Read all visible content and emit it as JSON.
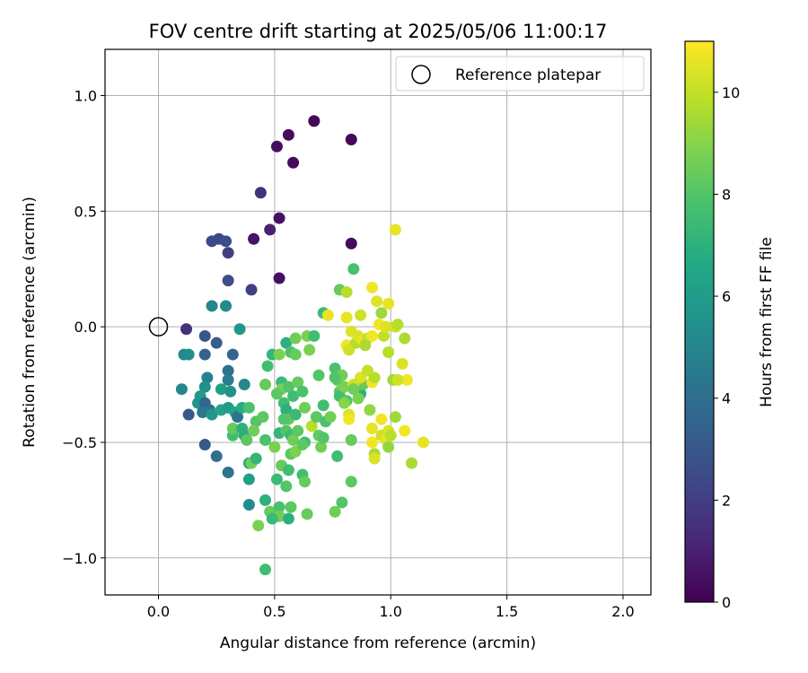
{
  "chart_data": {
    "type": "scatter",
    "title": "FOV centre drift starting at 2025/05/06 11:00:17",
    "xlabel": "Angular distance from reference (arcmin)",
    "ylabel": "Rotation from reference (arcmin)",
    "xlim": [
      -0.23,
      2.12
    ],
    "ylim": [
      -1.16,
      1.2
    ],
    "xticks": [
      0.0,
      0.5,
      1.0,
      1.5,
      2.0
    ],
    "xtick_labels": [
      "0.0",
      "0.5",
      "1.0",
      "1.5",
      "2.0"
    ],
    "yticks": [
      -1.0,
      -0.5,
      0.0,
      0.5,
      1.0
    ],
    "ytick_labels": [
      "−1.0",
      "−0.5",
      "0.0",
      "0.5",
      "1.0"
    ],
    "grid": true,
    "legend": {
      "placement": "upper-right",
      "entries": [
        "Reference platepar"
      ]
    },
    "reference_point": {
      "name": "Reference platepar",
      "x": 0.0,
      "y": 0.0,
      "marker": "open-circle"
    },
    "colorbar": {
      "label": "Hours from first FF file",
      "colormap": "viridis",
      "range": [
        0,
        11
      ],
      "ticks": [
        0,
        2,
        4,
        6,
        8,
        10
      ],
      "tick_labels": [
        "0",
        "2",
        "4",
        "6",
        "8",
        "10"
      ]
    },
    "points": [
      {
        "x": 0.67,
        "y": 0.89,
        "h": 0.2
      },
      {
        "x": 0.56,
        "y": 0.83,
        "h": 0.3
      },
      {
        "x": 0.83,
        "y": 0.81,
        "h": 0.2
      },
      {
        "x": 0.51,
        "y": 0.78,
        "h": 0.4
      },
      {
        "x": 0.58,
        "y": 0.71,
        "h": 0.3
      },
      {
        "x": 0.44,
        "y": 0.58,
        "h": 1.5
      },
      {
        "x": 0.52,
        "y": 0.47,
        "h": 0.5
      },
      {
        "x": 0.48,
        "y": 0.42,
        "h": 1.0
      },
      {
        "x": 0.41,
        "y": 0.38,
        "h": 0.6
      },
      {
        "x": 0.83,
        "y": 0.36,
        "h": 0.3
      },
      {
        "x": 0.52,
        "y": 0.21,
        "h": 0.4
      },
      {
        "x": 0.4,
        "y": 0.16,
        "h": 2.0
      },
      {
        "x": 0.23,
        "y": 0.37,
        "h": 2.3
      },
      {
        "x": 0.26,
        "y": 0.38,
        "h": 2.4
      },
      {
        "x": 0.29,
        "y": 0.37,
        "h": 2.6
      },
      {
        "x": 0.3,
        "y": 0.32,
        "h": 2.0
      },
      {
        "x": 0.3,
        "y": 0.2,
        "h": 2.6
      },
      {
        "x": 0.23,
        "y": 0.09,
        "h": 5.0
      },
      {
        "x": 0.29,
        "y": 0.09,
        "h": 5.2
      },
      {
        "x": 0.35,
        "y": -0.01,
        "h": 5.8
      },
      {
        "x": 0.12,
        "y": -0.01,
        "h": 1.5
      },
      {
        "x": 0.2,
        "y": -0.04,
        "h": 3.0
      },
      {
        "x": 0.25,
        "y": -0.07,
        "h": 3.2
      },
      {
        "x": 0.11,
        "y": -0.12,
        "h": 5.0
      },
      {
        "x": 0.13,
        "y": -0.12,
        "h": 5.4
      },
      {
        "x": 0.2,
        "y": -0.12,
        "h": 3.4
      },
      {
        "x": 0.32,
        "y": -0.12,
        "h": 3.6
      },
      {
        "x": 0.3,
        "y": -0.19,
        "h": 4.2
      },
      {
        "x": 0.21,
        "y": -0.22,
        "h": 4.8
      },
      {
        "x": 0.3,
        "y": -0.23,
        "h": 4.6
      },
      {
        "x": 0.37,
        "y": -0.25,
        "h": 5.0
      },
      {
        "x": 0.2,
        "y": -0.26,
        "h": 5.4
      },
      {
        "x": 0.1,
        "y": -0.27,
        "h": 5.0
      },
      {
        "x": 0.27,
        "y": -0.27,
        "h": 6.2
      },
      {
        "x": 0.31,
        "y": -0.28,
        "h": 5.6
      },
      {
        "x": 0.18,
        "y": -0.3,
        "h": 6.0
      },
      {
        "x": 0.17,
        "y": -0.33,
        "h": 5.6
      },
      {
        "x": 0.2,
        "y": -0.33,
        "h": 3.6
      },
      {
        "x": 0.22,
        "y": -0.36,
        "h": 4.0
      },
      {
        "x": 0.19,
        "y": -0.37,
        "h": 4.4
      },
      {
        "x": 0.13,
        "y": -0.38,
        "h": 3.0
      },
      {
        "x": 0.23,
        "y": -0.38,
        "h": 5.8
      },
      {
        "x": 0.27,
        "y": -0.36,
        "h": 6.4
      },
      {
        "x": 0.3,
        "y": -0.35,
        "h": 6.0
      },
      {
        "x": 0.33,
        "y": -0.37,
        "h": 6.4
      },
      {
        "x": 0.34,
        "y": -0.39,
        "h": 4.2
      },
      {
        "x": 0.36,
        "y": -0.35,
        "h": 6.8
      },
      {
        "x": 0.39,
        "y": -0.35,
        "h": 7.8
      },
      {
        "x": 0.2,
        "y": -0.51,
        "h": 3.0
      },
      {
        "x": 0.25,
        "y": -0.56,
        "h": 4.0
      },
      {
        "x": 0.3,
        "y": -0.63,
        "h": 4.2
      },
      {
        "x": 0.39,
        "y": -0.66,
        "h": 6.2
      },
      {
        "x": 0.39,
        "y": -0.77,
        "h": 5.2
      },
      {
        "x": 0.32,
        "y": -0.47,
        "h": 7.6
      },
      {
        "x": 0.37,
        "y": -0.47,
        "h": 6.8
      },
      {
        "x": 0.39,
        "y": -0.59,
        "h": 6.6
      },
      {
        "x": 0.4,
        "y": -0.59,
        "h": 8.6
      },
      {
        "x": 0.42,
        "y": -0.57,
        "h": 7.2
      },
      {
        "x": 0.32,
        "y": -0.44,
        "h": 8.4
      },
      {
        "x": 0.36,
        "y": -0.44,
        "h": 7.0
      },
      {
        "x": 0.42,
        "y": -0.41,
        "h": 8.0
      },
      {
        "x": 0.45,
        "y": -0.39,
        "h": 8.2
      },
      {
        "x": 0.41,
        "y": -0.45,
        "h": 8.6
      },
      {
        "x": 0.38,
        "y": -0.49,
        "h": 8.2
      },
      {
        "x": 0.46,
        "y": -0.25,
        "h": 8.4
      },
      {
        "x": 0.47,
        "y": -0.17,
        "h": 7.6
      },
      {
        "x": 0.49,
        "y": -0.12,
        "h": 7.2
      },
      {
        "x": 0.52,
        "y": -0.12,
        "h": 8.8
      },
      {
        "x": 0.55,
        "y": -0.07,
        "h": 7.0
      },
      {
        "x": 0.57,
        "y": -0.11,
        "h": 7.8
      },
      {
        "x": 0.59,
        "y": -0.05,
        "h": 8.6
      },
      {
        "x": 0.64,
        "y": -0.04,
        "h": 8.8
      },
      {
        "x": 0.67,
        "y": -0.04,
        "h": 7.6
      },
      {
        "x": 0.59,
        "y": -0.12,
        "h": 8.4
      },
      {
        "x": 0.53,
        "y": -0.24,
        "h": 7.4
      },
      {
        "x": 0.53,
        "y": -0.27,
        "h": 8.8
      },
      {
        "x": 0.56,
        "y": -0.26,
        "h": 8.0
      },
      {
        "x": 0.58,
        "y": -0.3,
        "h": 7.6
      },
      {
        "x": 0.6,
        "y": -0.24,
        "h": 8.4
      },
      {
        "x": 0.62,
        "y": -0.28,
        "h": 7.8
      },
      {
        "x": 0.51,
        "y": -0.29,
        "h": 8.2
      },
      {
        "x": 0.54,
        "y": -0.33,
        "h": 7.6
      },
      {
        "x": 0.55,
        "y": -0.36,
        "h": 7.0
      },
      {
        "x": 0.56,
        "y": -0.4,
        "h": 8.4
      },
      {
        "x": 0.54,
        "y": -0.4,
        "h": 8.0
      },
      {
        "x": 0.59,
        "y": -0.38,
        "h": 7.4
      },
      {
        "x": 0.63,
        "y": -0.35,
        "h": 8.6
      },
      {
        "x": 0.66,
        "y": -0.43,
        "h": 9.8
      },
      {
        "x": 0.68,
        "y": -0.39,
        "h": 8.2
      },
      {
        "x": 0.71,
        "y": -0.34,
        "h": 7.6
      },
      {
        "x": 0.69,
        "y": -0.47,
        "h": 8.4
      },
      {
        "x": 0.72,
        "y": -0.41,
        "h": 7.8
      },
      {
        "x": 0.74,
        "y": -0.39,
        "h": 8.6
      },
      {
        "x": 0.52,
        "y": -0.46,
        "h": 7.2
      },
      {
        "x": 0.55,
        "y": -0.45,
        "h": 8.0
      },
      {
        "x": 0.57,
        "y": -0.47,
        "h": 7.4
      },
      {
        "x": 0.58,
        "y": -0.49,
        "h": 8.6
      },
      {
        "x": 0.6,
        "y": -0.45,
        "h": 8.2
      },
      {
        "x": 0.63,
        "y": -0.5,
        "h": 7.6
      },
      {
        "x": 0.5,
        "y": -0.52,
        "h": 8.8
      },
      {
        "x": 0.46,
        "y": -0.49,
        "h": 7.8
      },
      {
        "x": 0.53,
        "y": -0.6,
        "h": 8.4
      },
      {
        "x": 0.56,
        "y": -0.62,
        "h": 7.6
      },
      {
        "x": 0.57,
        "y": -0.55,
        "h": 8.2
      },
      {
        "x": 0.51,
        "y": -0.66,
        "h": 7.4
      },
      {
        "x": 0.55,
        "y": -0.69,
        "h": 8.0
      },
      {
        "x": 0.62,
        "y": -0.64,
        "h": 7.6
      },
      {
        "x": 0.63,
        "y": -0.67,
        "h": 8.4
      },
      {
        "x": 0.59,
        "y": -0.54,
        "h": 8.8
      },
      {
        "x": 0.62,
        "y": -0.51,
        "h": 8.2
      },
      {
        "x": 0.7,
        "y": -0.52,
        "h": 8.6
      },
      {
        "x": 0.71,
        "y": -0.48,
        "h": 8.0
      },
      {
        "x": 0.46,
        "y": -0.75,
        "h": 7.0
      },
      {
        "x": 0.48,
        "y": -0.8,
        "h": 8.4
      },
      {
        "x": 0.52,
        "y": -0.78,
        "h": 7.8
      },
      {
        "x": 0.52,
        "y": -0.82,
        "h": 8.6
      },
      {
        "x": 0.49,
        "y": -0.83,
        "h": 7.4
      },
      {
        "x": 0.56,
        "y": -0.83,
        "h": 7.0
      },
      {
        "x": 0.57,
        "y": -0.78,
        "h": 8.2
      },
      {
        "x": 0.64,
        "y": -0.81,
        "h": 8.4
      },
      {
        "x": 0.76,
        "y": -0.8,
        "h": 8.6
      },
      {
        "x": 0.79,
        "y": -0.76,
        "h": 8.0
      },
      {
        "x": 0.43,
        "y": -0.86,
        "h": 8.8
      },
      {
        "x": 0.46,
        "y": -1.05,
        "h": 7.6
      },
      {
        "x": 0.65,
        "y": -0.1,
        "h": 8.8
      },
      {
        "x": 0.69,
        "y": -0.21,
        "h": 8.0
      },
      {
        "x": 0.71,
        "y": 0.06,
        "h": 7.4
      },
      {
        "x": 0.73,
        "y": 0.05,
        "h": 10.6
      },
      {
        "x": 0.77,
        "y": -0.23,
        "h": 8.2
      },
      {
        "x": 0.76,
        "y": -0.18,
        "h": 7.8
      },
      {
        "x": 0.79,
        "y": -0.21,
        "h": 8.6
      },
      {
        "x": 0.78,
        "y": -0.28,
        "h": 8.4
      },
      {
        "x": 0.78,
        "y": -0.3,
        "h": 7.6
      },
      {
        "x": 0.8,
        "y": -0.26,
        "h": 8.8
      },
      {
        "x": 0.81,
        "y": -0.32,
        "h": 8.0
      },
      {
        "x": 0.8,
        "y": -0.33,
        "h": 9.0
      },
      {
        "x": 0.82,
        "y": -0.38,
        "h": 10.4
      },
      {
        "x": 0.82,
        "y": -0.4,
        "h": 10.8
      },
      {
        "x": 0.83,
        "y": -0.49,
        "h": 8.4
      },
      {
        "x": 0.77,
        "y": -0.56,
        "h": 7.6
      },
      {
        "x": 0.83,
        "y": -0.67,
        "h": 8.2
      },
      {
        "x": 0.87,
        "y": -0.29,
        "h": 7.0
      },
      {
        "x": 0.88,
        "y": -0.25,
        "h": 8.4
      },
      {
        "x": 0.86,
        "y": -0.31,
        "h": 8.8
      },
      {
        "x": 0.91,
        "y": -0.36,
        "h": 9.2
      },
      {
        "x": 0.92,
        "y": -0.44,
        "h": 10.6
      },
      {
        "x": 0.92,
        "y": -0.5,
        "h": 10.8
      },
      {
        "x": 0.93,
        "y": -0.55,
        "h": 9.6
      },
      {
        "x": 0.93,
        "y": -0.57,
        "h": 10.4
      },
      {
        "x": 0.96,
        "y": -0.4,
        "h": 10.8
      },
      {
        "x": 0.96,
        "y": -0.47,
        "h": 10.2
      },
      {
        "x": 0.98,
        "y": -0.49,
        "h": 10.6
      },
      {
        "x": 0.99,
        "y": -0.45,
        "h": 10.4
      },
      {
        "x": 1.0,
        "y": -0.47,
        "h": 9.8
      },
      {
        "x": 1.02,
        "y": -0.39,
        "h": 9.4
      },
      {
        "x": 0.99,
        "y": -0.52,
        "h": 9.2
      },
      {
        "x": 1.06,
        "y": -0.45,
        "h": 10.8
      },
      {
        "x": 1.09,
        "y": -0.59,
        "h": 9.6
      },
      {
        "x": 1.14,
        "y": -0.5,
        "h": 10.6
      },
      {
        "x": 1.07,
        "y": -0.23,
        "h": 10.8
      },
      {
        "x": 1.01,
        "y": -0.23,
        "h": 9.4
      },
      {
        "x": 1.03,
        "y": -0.23,
        "h": 10.2
      },
      {
        "x": 1.05,
        "y": -0.16,
        "h": 10.4
      },
      {
        "x": 0.99,
        "y": -0.11,
        "h": 9.8
      },
      {
        "x": 1.06,
        "y": -0.05,
        "h": 9.6
      },
      {
        "x": 0.97,
        "y": -0.04,
        "h": 10.0
      },
      {
        "x": 0.95,
        "y": 0.01,
        "h": 10.8
      },
      {
        "x": 0.98,
        "y": 0.0,
        "h": 10.4
      },
      {
        "x": 1.02,
        "y": 0.0,
        "h": 10.2
      },
      {
        "x": 1.03,
        "y": 0.01,
        "h": 9.8
      },
      {
        "x": 0.99,
        "y": 0.1,
        "h": 10.6
      },
      {
        "x": 0.94,
        "y": 0.11,
        "h": 10.4
      },
      {
        "x": 0.92,
        "y": 0.17,
        "h": 10.8
      },
      {
        "x": 0.96,
        "y": 0.06,
        "h": 9.4
      },
      {
        "x": 0.87,
        "y": 0.05,
        "h": 10.2
      },
      {
        "x": 0.81,
        "y": 0.04,
        "h": 10.6
      },
      {
        "x": 0.83,
        "y": -0.02,
        "h": 10.4
      },
      {
        "x": 0.84,
        "y": 0.25,
        "h": 7.8
      },
      {
        "x": 0.78,
        "y": 0.16,
        "h": 8.4
      },
      {
        "x": 0.81,
        "y": 0.15,
        "h": 9.8
      },
      {
        "x": 1.02,
        "y": 0.42,
        "h": 10.6
      },
      {
        "x": 0.81,
        "y": -0.08,
        "h": 10.8
      },
      {
        "x": 0.82,
        "y": -0.1,
        "h": 10.2
      },
      {
        "x": 0.85,
        "y": -0.07,
        "h": 9.8
      },
      {
        "x": 0.86,
        "y": -0.04,
        "h": 10.4
      },
      {
        "x": 0.88,
        "y": -0.06,
        "h": 10.6
      },
      {
        "x": 0.9,
        "y": -0.05,
        "h": 10.0
      },
      {
        "x": 0.92,
        "y": -0.04,
        "h": 10.8
      },
      {
        "x": 0.89,
        "y": -0.08,
        "h": 9.6
      },
      {
        "x": 0.87,
        "y": -0.22,
        "h": 10.4
      },
      {
        "x": 0.9,
        "y": -0.19,
        "h": 10.0
      },
      {
        "x": 0.92,
        "y": -0.24,
        "h": 10.8
      },
      {
        "x": 0.93,
        "y": -0.22,
        "h": 9.8
      },
      {
        "x": 0.84,
        "y": -0.25,
        "h": 10.2
      },
      {
        "x": 0.84,
        "y": -0.27,
        "h": 8.6
      },
      {
        "x": 0.76,
        "y": -0.22,
        "h": 8.0
      }
    ]
  }
}
